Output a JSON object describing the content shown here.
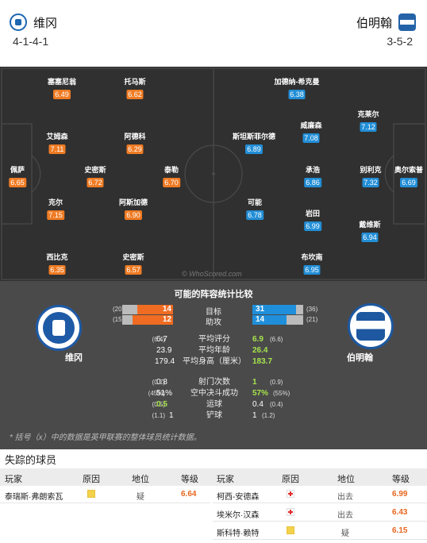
{
  "header": {
    "home_team": "维冈",
    "away_team": "伯明翰",
    "home_formation": "4-1-4-1",
    "away_formation": "3-5-2"
  },
  "colors": {
    "home_rating": "#ef7b23",
    "away_rating": "#228ed6",
    "pitch": "#303030",
    "compare_bg": "#4a4a4a",
    "highlight": "#a6e34d"
  },
  "pitch": {
    "watermark": "© WhoScored.com",
    "home_players": [
      {
        "name": "塞塞尼翁",
        "rating": "6.49"
      },
      {
        "name": "托马斯",
        "rating": "6.62"
      },
      {
        "name": "艾姆森",
        "rating": "7.11"
      },
      {
        "name": "阿德科",
        "rating": "6.29"
      },
      {
        "name": "佩萨",
        "rating": "6.65"
      },
      {
        "name": "史密斯",
        "rating": "6.72"
      },
      {
        "name": "泰勒",
        "rating": "6.70"
      },
      {
        "name": "克尔",
        "rating": "7.15"
      },
      {
        "name": "阿斯加德",
        "rating": "6.90"
      },
      {
        "name": "西比克",
        "rating": "6.35"
      },
      {
        "name": "史密斯",
        "rating": "6.57"
      }
    ],
    "away_players": [
      {
        "name": "加德纳-希克曼",
        "rating": "6.38"
      },
      {
        "name": "克莱尔",
        "rating": "7.12"
      },
      {
        "name": "斯坦斯菲尔德",
        "rating": "6.89"
      },
      {
        "name": "威廉森",
        "rating": "7.08"
      },
      {
        "name": "承浩",
        "rating": "6.86"
      },
      {
        "name": "别利克",
        "rating": "7.32"
      },
      {
        "name": "奥尔索普",
        "rating": "6.69"
      },
      {
        "name": "可能",
        "rating": "6.78"
      },
      {
        "name": "岩田",
        "rating": "6.99"
      },
      {
        "name": "戴维斯",
        "rating": "6.94"
      },
      {
        "name": "布坎南",
        "rating": "6.95"
      }
    ]
  },
  "comparison": {
    "title": "可能的阵容统计比较",
    "home_name": "维冈",
    "away_name": "伯明翰",
    "bars": [
      {
        "label": "目标",
        "home": "14",
        "away": "31",
        "home_par": "(20)",
        "away_par": "(36)",
        "home_frac": 0.7,
        "away_frac": 0.86
      },
      {
        "label": "助攻",
        "home": "12",
        "away": "14",
        "home_par": "(15)",
        "away_par": "(21)",
        "home_frac": 0.8,
        "away_frac": 0.67
      }
    ],
    "stats": [
      {
        "label": "平均评分",
        "home": "6.7",
        "home_par": "(6.4)",
        "away": "6.9",
        "away_par": "(6.6)"
      },
      {
        "label": "平均年龄",
        "home": "23.9",
        "home_par": "",
        "away": "26.4",
        "away_par": ""
      },
      {
        "label": "平均身高（厘米）",
        "home": "179.4",
        "home_par": "",
        "away": "183.7",
        "away_par": ""
      },
      {
        "label": "射门次数",
        "home": "0.8",
        "home_par": "(0.7)",
        "away": "1",
        "away_par": "(0.9)"
      },
      {
        "label": "空中决斗成功",
        "home": "51%",
        "home_par": "(45%)",
        "away": "57%",
        "away_par": "(55%)"
      },
      {
        "label": "运球",
        "home": "0.5",
        "home_par": "(0.5)",
        "away": "0.4",
        "away_par": "(0.4)"
      },
      {
        "label": "铲球",
        "home": "1",
        "home_par": "(1.1)",
        "away": "1",
        "away_par": "(1.2)"
      }
    ],
    "footnote": "* 括号（x）中的数据是英甲联赛的整体球员统计数据。"
  },
  "missing": {
    "title": "失踪的球员",
    "headers": {
      "player": "玩家",
      "reason": "原因",
      "status": "地位",
      "grade": "等级"
    },
    "home": [
      {
        "player": "泰瑞斯·弗朗索瓦",
        "reason": "doubt",
        "status": "疑",
        "grade": "6.64"
      }
    ],
    "away": [
      {
        "player": "柯西-安德森",
        "reason": "injury",
        "status": "出去",
        "grade": "6.99"
      },
      {
        "player": "埃米尔·汉森",
        "reason": "injury",
        "status": "出去",
        "grade": "6.43"
      },
      {
        "player": "斯科特·赖特",
        "reason": "doubt",
        "status": "疑",
        "grade": "6.15"
      }
    ]
  }
}
